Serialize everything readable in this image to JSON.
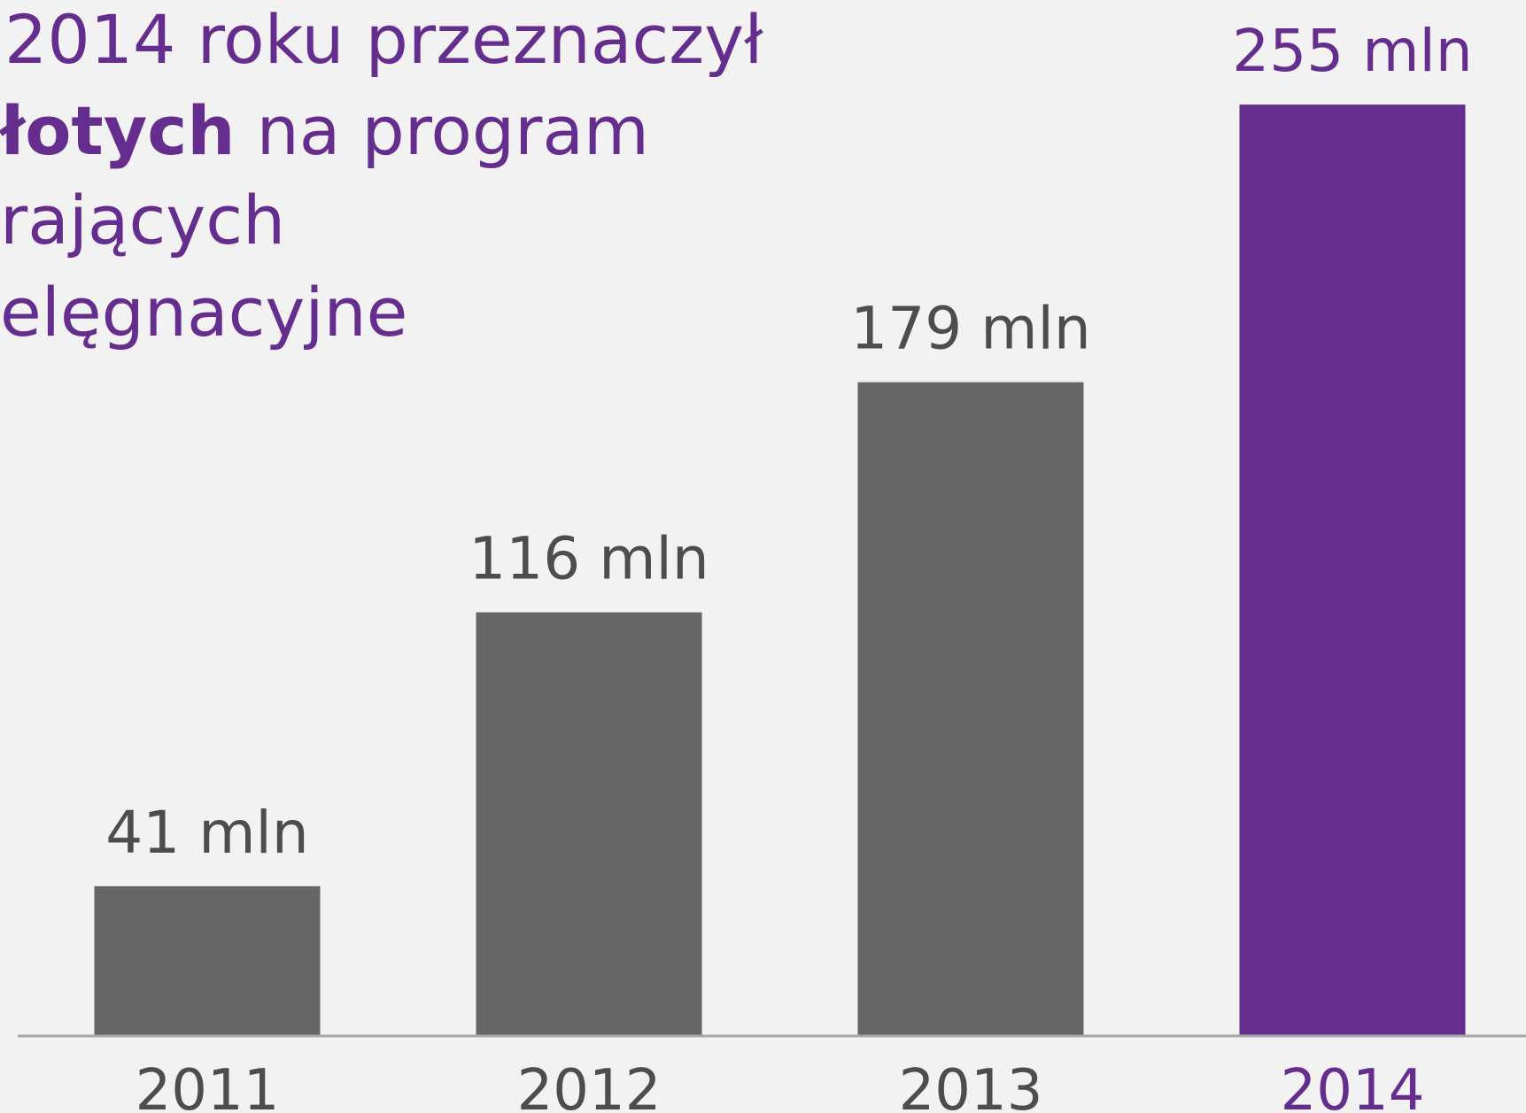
{
  "chart_data": {
    "type": "bar",
    "annotation": [
      [
        {
          "text": "2014 roku przeznaczył"
        }
      ],
      [
        {
          "text": "łotych",
          "bold": true
        },
        {
          "text": " na program"
        }
      ],
      [
        {
          "text": "rających"
        }
      ],
      [
        {
          "text": "elęgnacyjne"
        }
      ]
    ],
    "annotation_color": "#652d8e",
    "categories": [
      "2011",
      "2012",
      "2013",
      "2014"
    ],
    "values": [
      41,
      116,
      179,
      255
    ],
    "value_labels": [
      "41 mln",
      "116 mln",
      "179 mln",
      "255 mln"
    ],
    "colors": [
      "#666666",
      "#666666",
      "#666666",
      "#652d8e"
    ],
    "text_colors": [
      "#4d4d4d",
      "#4d4d4d",
      "#4d4d4d",
      "#652d8e"
    ],
    "ylim": [
      0,
      280
    ]
  }
}
